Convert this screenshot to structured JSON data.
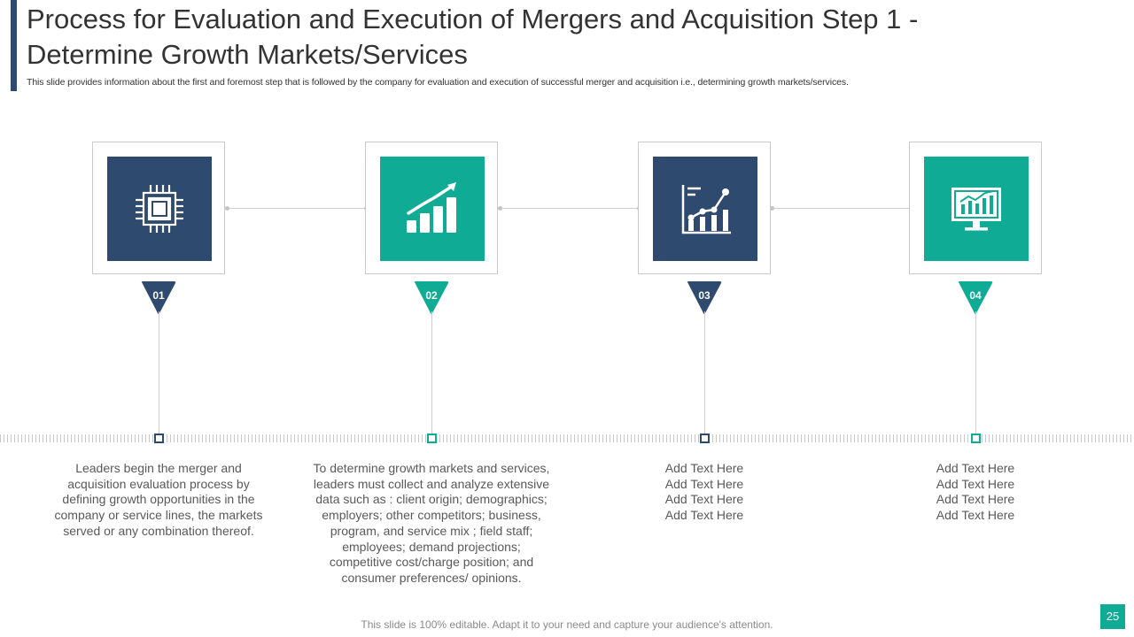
{
  "slide": {
    "title_line1": "Process for Evaluation and Execution of Mergers and Acquisition Step 1 -",
    "title_line2": "Determine Growth Markets/Services",
    "subtitle": "This slide provides information about the first and foremost step that is followed by the company for evaluation and execution of successful merger and acquisition i.e., determining growth markets/services.",
    "footer": "This slide is 100% editable. Adapt it to your need and capture your audience's attention.",
    "page_number": "25"
  },
  "colors": {
    "navy": "#2e4a6e",
    "teal": "#0fab95"
  },
  "steps": [
    {
      "number": "01",
      "color": "navy",
      "icon": "processor-chip-icon",
      "text": [
        "Leaders begin the merger and",
        "acquisition evaluation process by",
        "defining growth opportunities in the",
        "company or service lines, the markets",
        "served or any combination thereof."
      ]
    },
    {
      "number": "02",
      "color": "teal",
      "icon": "growth-bar-chart-icon",
      "text": [
        "To determine growth markets and services,",
        "leaders must collect and analyze extensive",
        "data such as : client origin; demographics;",
        "employers; other competitors; business,",
        "program, and service mix ; field staff;",
        "employees; demand projections;",
        "competitive cost/charge position; and",
        "consumer preferences/ opinions."
      ]
    },
    {
      "number": "03",
      "color": "navy",
      "icon": "analytics-chart-icon",
      "text": [
        "Add Text Here",
        "Add Text Here",
        "Add Text Here",
        "Add Text Here"
      ]
    },
    {
      "number": "04",
      "color": "teal",
      "icon": "monitor-chart-icon",
      "text": [
        "Add Text Here",
        "Add Text Here",
        "Add Text Here",
        "Add Text Here"
      ]
    }
  ]
}
